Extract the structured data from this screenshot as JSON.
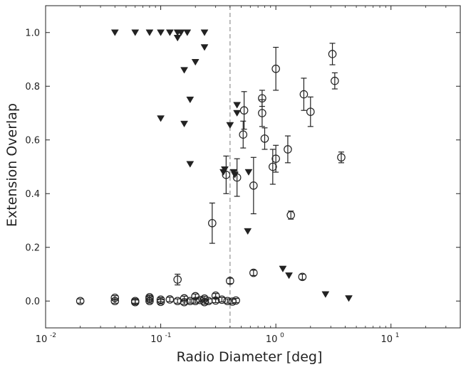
{
  "chart_data": {
    "type": "scatter",
    "title": "",
    "xlabel": "Radio Diameter [deg]",
    "ylabel": "Extension Overlap",
    "xscale": "log",
    "xlim": [
      0.01,
      40
    ],
    "ylim": [
      -0.1,
      1.1
    ],
    "x_ticks": [
      {
        "base": "10",
        "exp": "-2",
        "value": 0.01
      },
      {
        "base": "10",
        "exp": "-1",
        "value": 0.1
      },
      {
        "base": "10",
        "exp": "0",
        "value": 1
      },
      {
        "base": "10",
        "exp": "1",
        "value": 10
      }
    ],
    "y_ticks": [
      "0.0",
      "0.2",
      "0.4",
      "0.6",
      "0.8",
      "1.0"
    ],
    "y_tick_values": [
      0.0,
      0.2,
      0.4,
      0.6,
      0.8,
      1.0
    ],
    "reference_line": {
      "x": 0.4,
      "style": "dashed",
      "color": "#999999"
    },
    "grid": false,
    "series": [
      {
        "marker": "circle-open",
        "color": "#222222",
        "points": [
          {
            "x": 0.28,
            "y": 0.29,
            "err": 0.075
          },
          {
            "x": 0.37,
            "y": 0.47,
            "err": 0.07
          },
          {
            "x": 0.46,
            "y": 0.46,
            "err": 0.07
          },
          {
            "x": 0.52,
            "y": 0.62,
            "err": 0.05
          },
          {
            "x": 0.53,
            "y": 0.71,
            "err": 0.07
          },
          {
            "x": 0.64,
            "y": 0.43,
            "err": 0.105
          },
          {
            "x": 0.76,
            "y": 0.7,
            "err": 0.05
          },
          {
            "x": 0.76,
            "y": 0.755,
            "err": 0.03
          },
          {
            "x": 0.8,
            "y": 0.605,
            "err": 0.04
          },
          {
            "x": 0.94,
            "y": 0.5,
            "err": 0.065
          },
          {
            "x": 1.0,
            "y": 0.865,
            "err": 0.08
          },
          {
            "x": 1.0,
            "y": 0.53,
            "err": 0.05
          },
          {
            "x": 1.27,
            "y": 0.565,
            "err": 0.05
          },
          {
            "x": 1.35,
            "y": 0.32,
            "err": 0.015
          },
          {
            "x": 1.75,
            "y": 0.77,
            "err": 0.06
          },
          {
            "x": 2.0,
            "y": 0.705,
            "err": 0.055
          },
          {
            "x": 3.1,
            "y": 0.92,
            "err": 0.04
          },
          {
            "x": 3.25,
            "y": 0.82,
            "err": 0.03
          },
          {
            "x": 3.7,
            "y": 0.535,
            "err": 0.02
          },
          {
            "x": 0.14,
            "y": 0.08,
            "err": 0.02
          },
          {
            "x": 0.4,
            "y": 0.075,
            "err": 0.01
          },
          {
            "x": 0.64,
            "y": 0.105,
            "err": 0.01
          },
          {
            "x": 1.7,
            "y": 0.09,
            "err": 0.01
          },
          {
            "x": 0.02,
            "y": 0.0,
            "err": 0.008
          },
          {
            "x": 0.04,
            "y": 0.012,
            "err": 0.008
          },
          {
            "x": 0.04,
            "y": 0.0,
            "err": 0.008
          },
          {
            "x": 0.06,
            "y": 0.0,
            "err": 0.008
          },
          {
            "x": 0.06,
            "y": -0.004,
            "err": 0.008
          },
          {
            "x": 0.08,
            "y": 0.014,
            "err": 0.008
          },
          {
            "x": 0.08,
            "y": 0.0,
            "err": 0.008
          },
          {
            "x": 0.08,
            "y": 0.008,
            "err": 0.008
          },
          {
            "x": 0.1,
            "y": 0.005,
            "err": 0.008
          },
          {
            "x": 0.1,
            "y": -0.003,
            "err": 0.008
          },
          {
            "x": 0.12,
            "y": 0.006,
            "err": 0.008
          },
          {
            "x": 0.14,
            "y": 0.0,
            "err": 0.008
          },
          {
            "x": 0.16,
            "y": 0.01,
            "err": 0.008
          },
          {
            "x": 0.16,
            "y": -0.004,
            "err": 0.008
          },
          {
            "x": 0.18,
            "y": 0.0,
            "err": 0.008
          },
          {
            "x": 0.2,
            "y": 0.018,
            "err": 0.008
          },
          {
            "x": 0.2,
            "y": 0.0,
            "err": 0.008
          },
          {
            "x": 0.22,
            "y": 0.004,
            "err": 0.008
          },
          {
            "x": 0.24,
            "y": 0.009,
            "err": 0.008
          },
          {
            "x": 0.24,
            "y": -0.004,
            "err": 0.008
          },
          {
            "x": 0.26,
            "y": 0.0,
            "err": 0.008
          },
          {
            "x": 0.3,
            "y": 0.02,
            "err": 0.008
          },
          {
            "x": 0.3,
            "y": 0.002,
            "err": 0.008
          },
          {
            "x": 0.34,
            "y": 0.005,
            "err": 0.008
          },
          {
            "x": 0.38,
            "y": 0.0,
            "err": 0.008
          },
          {
            "x": 0.42,
            "y": -0.002,
            "err": 0.008
          },
          {
            "x": 0.45,
            "y": 0.002,
            "err": 0.008
          }
        ]
      },
      {
        "marker": "triangle-down-filled",
        "color": "#222222",
        "points": [
          {
            "x": 0.04,
            "y": 1.0
          },
          {
            "x": 0.06,
            "y": 1.0
          },
          {
            "x": 0.08,
            "y": 1.0
          },
          {
            "x": 0.1,
            "y": 1.0
          },
          {
            "x": 0.12,
            "y": 1.0
          },
          {
            "x": 0.14,
            "y": 1.0
          },
          {
            "x": 0.15,
            "y": 1.0
          },
          {
            "x": 0.17,
            "y": 1.0
          },
          {
            "x": 0.24,
            "y": 1.0
          },
          {
            "x": 0.14,
            "y": 0.98
          },
          {
            "x": 0.24,
            "y": 0.945
          },
          {
            "x": 0.2,
            "y": 0.89
          },
          {
            "x": 0.16,
            "y": 0.86
          },
          {
            "x": 0.18,
            "y": 0.75
          },
          {
            "x": 0.1,
            "y": 0.68
          },
          {
            "x": 0.16,
            "y": 0.66
          },
          {
            "x": 0.18,
            "y": 0.51
          },
          {
            "x": 0.4,
            "y": 0.655
          },
          {
            "x": 0.46,
            "y": 0.73
          },
          {
            "x": 0.46,
            "y": 0.7
          },
          {
            "x": 0.36,
            "y": 0.49
          },
          {
            "x": 0.35,
            "y": 0.48
          },
          {
            "x": 0.43,
            "y": 0.48
          },
          {
            "x": 0.44,
            "y": 0.47
          },
          {
            "x": 0.58,
            "y": 0.48
          },
          {
            "x": 0.57,
            "y": 0.26
          },
          {
            "x": 1.15,
            "y": 0.12
          },
          {
            "x": 1.3,
            "y": 0.095
          },
          {
            "x": 2.7,
            "y": 0.025
          },
          {
            "x": 4.3,
            "y": 0.01
          }
        ]
      }
    ]
  }
}
